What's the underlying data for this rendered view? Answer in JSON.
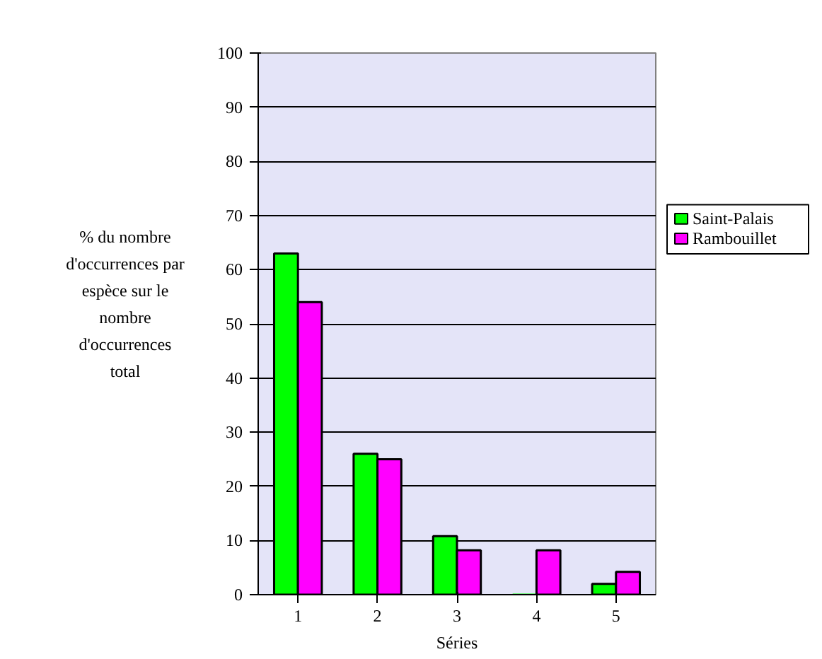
{
  "chart_data": {
    "type": "bar",
    "xlabel": "Séries",
    "ylabel": "% du nombre d'occurrences par espèce sur le nombre d'occurrences total",
    "categories": [
      "1",
      "2",
      "3",
      "4",
      "5"
    ],
    "series": [
      {
        "name": "Saint-Palais",
        "color": "#00ff00",
        "values": [
          63,
          26,
          10.8,
          0,
          2
        ]
      },
      {
        "name": "Rambouillet",
        "color": "#ff00ff",
        "values": [
          54,
          25,
          8.2,
          8.2,
          4.2
        ]
      }
    ],
    "ylim": [
      0,
      100
    ],
    "yticks": [
      0,
      10,
      20,
      30,
      40,
      50,
      60,
      70,
      80,
      90,
      100
    ],
    "grid": "y",
    "legend": "right"
  }
}
